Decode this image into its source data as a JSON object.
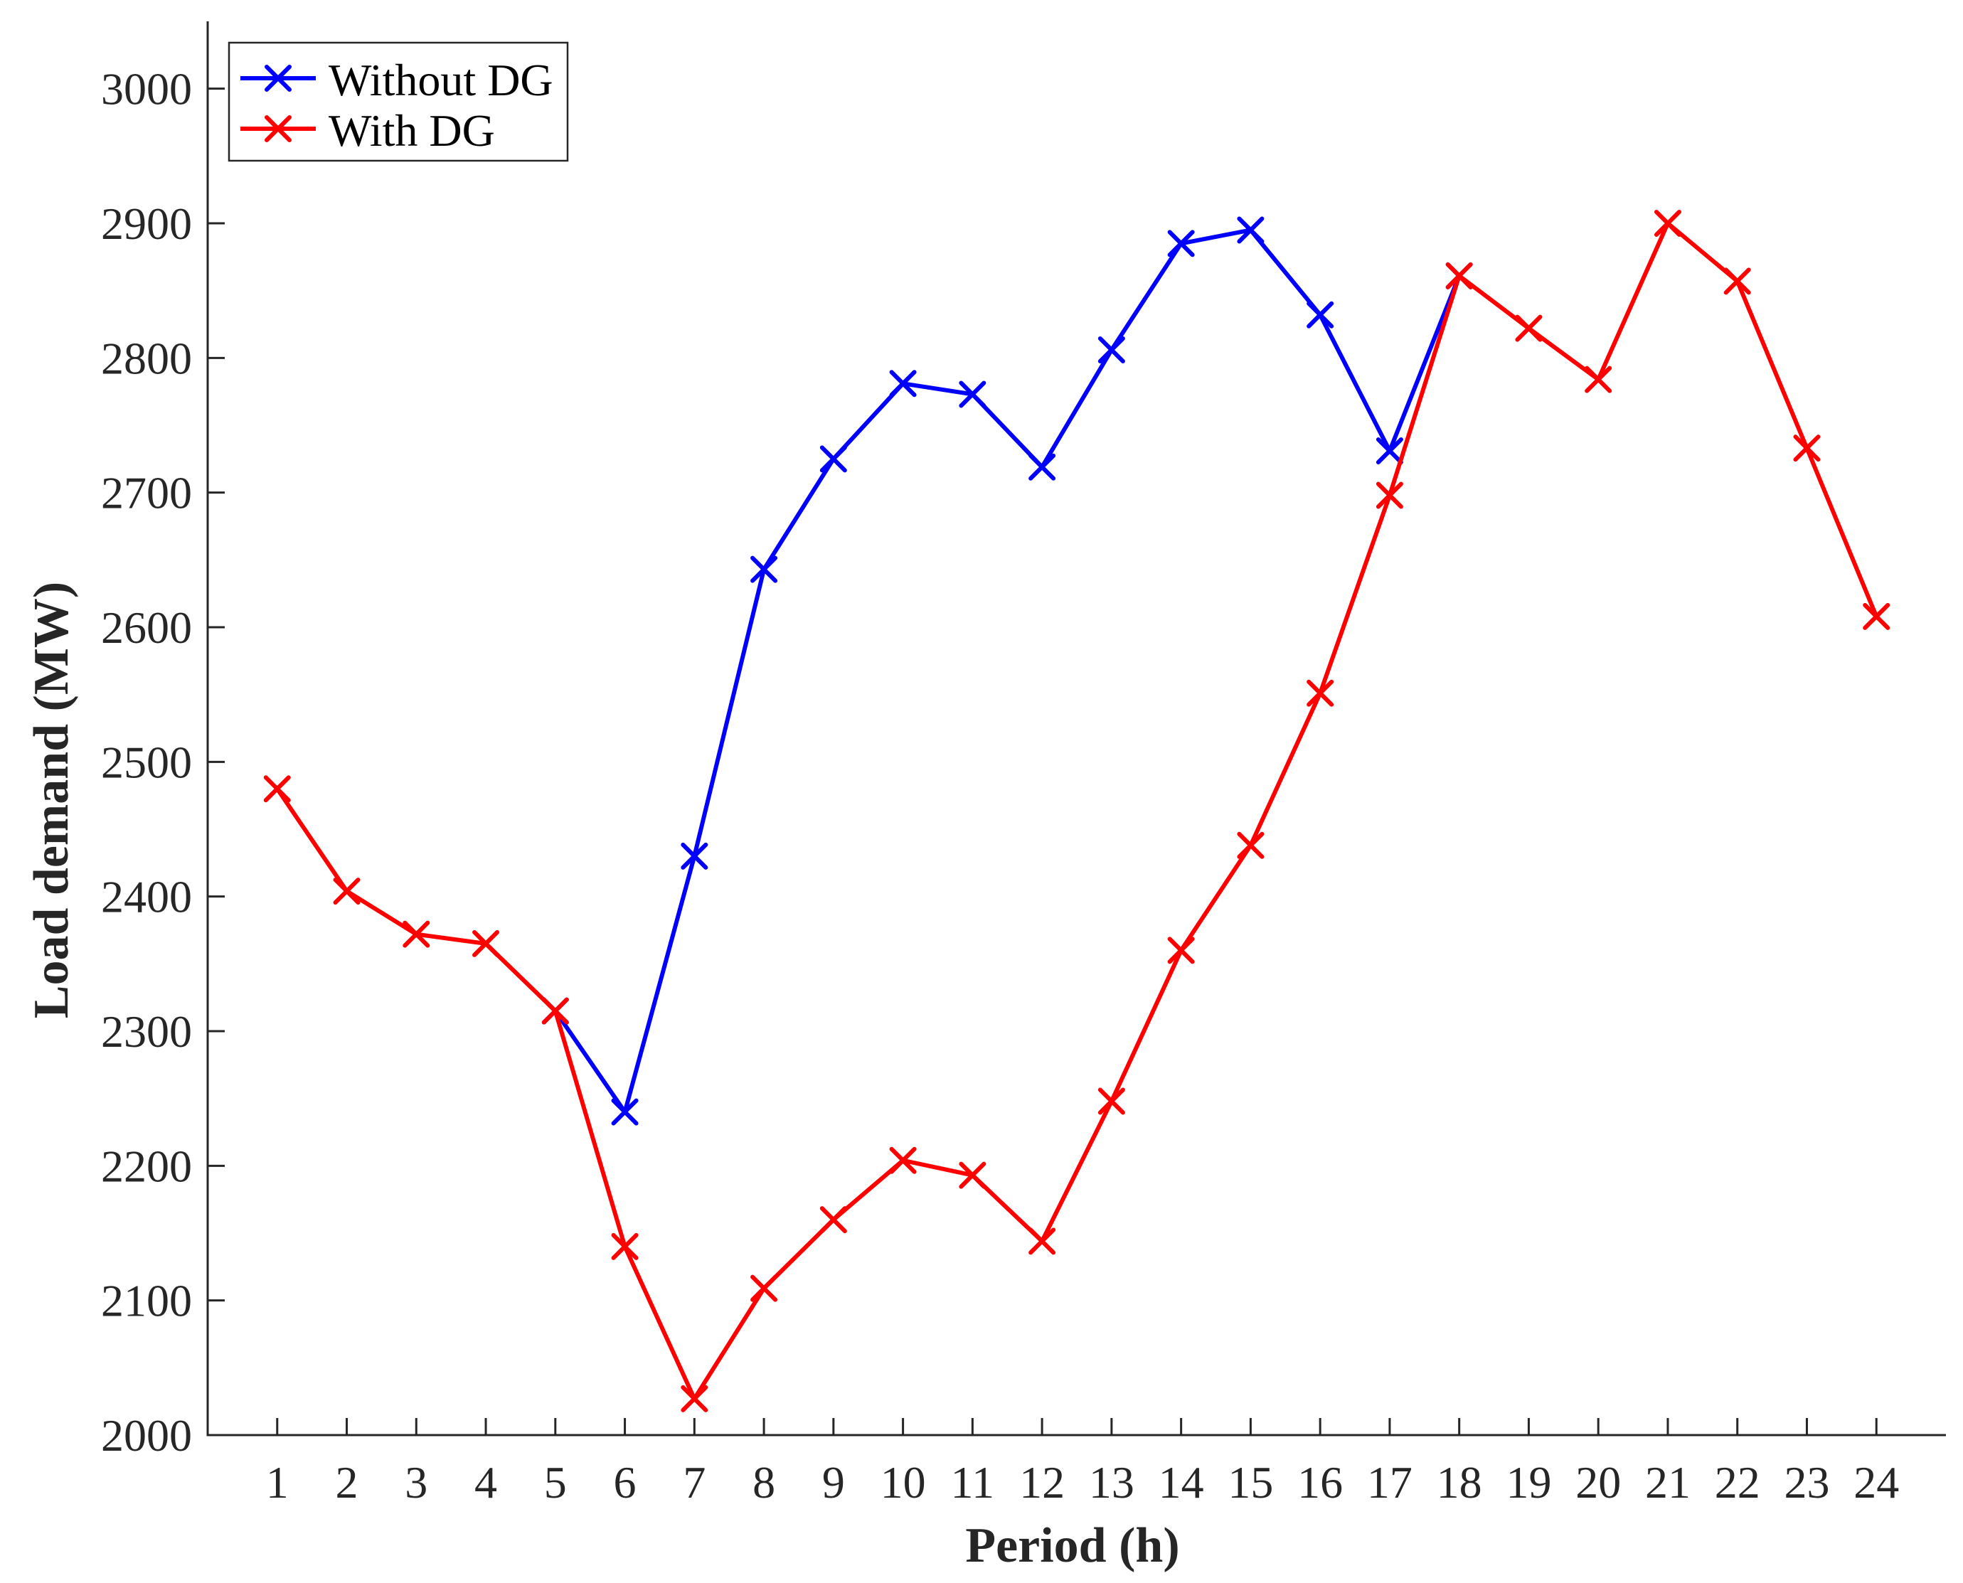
{
  "chart_data": {
    "type": "line",
    "xlabel": "Period (h)",
    "ylabel": "Load demand (MW)",
    "xlim": [
      0,
      25
    ],
    "ylim": [
      2000,
      3050
    ],
    "xticks": [
      1,
      2,
      3,
      4,
      5,
      6,
      7,
      8,
      9,
      10,
      11,
      12,
      13,
      14,
      15,
      16,
      17,
      18,
      19,
      20,
      21,
      22,
      23,
      24
    ],
    "yticks": [
      2000,
      2100,
      2200,
      2300,
      2400,
      2500,
      2600,
      2700,
      2800,
      2900,
      3000
    ],
    "legend_position": "top-left",
    "grid": false,
    "marker": "x",
    "series": [
      {
        "name": "Without DG",
        "color": "#0000ff",
        "x": [
          5,
          6,
          7,
          8,
          9,
          10,
          11,
          12,
          13,
          14,
          15,
          16,
          17,
          18
        ],
        "values": [
          2315,
          2240,
          2430,
          2643,
          2725,
          2781,
          2773,
          2719,
          2806,
          2885,
          2895,
          2832,
          2731,
          2861
        ]
      },
      {
        "name": "With DG",
        "color": "#ff0000",
        "x": [
          1,
          2,
          3,
          4,
          5,
          6,
          7,
          8,
          9,
          10,
          11,
          12,
          13,
          14,
          15,
          16,
          17,
          18,
          19,
          20,
          21,
          22,
          23,
          24
        ],
        "values": [
          2480,
          2404,
          2372,
          2365,
          2315,
          2140,
          2027,
          2109,
          2160,
          2204,
          2193,
          2144,
          2248,
          2360,
          2438,
          2551,
          2698,
          2861,
          2822,
          2784,
          2900,
          2857,
          2733,
          2608
        ]
      }
    ]
  }
}
